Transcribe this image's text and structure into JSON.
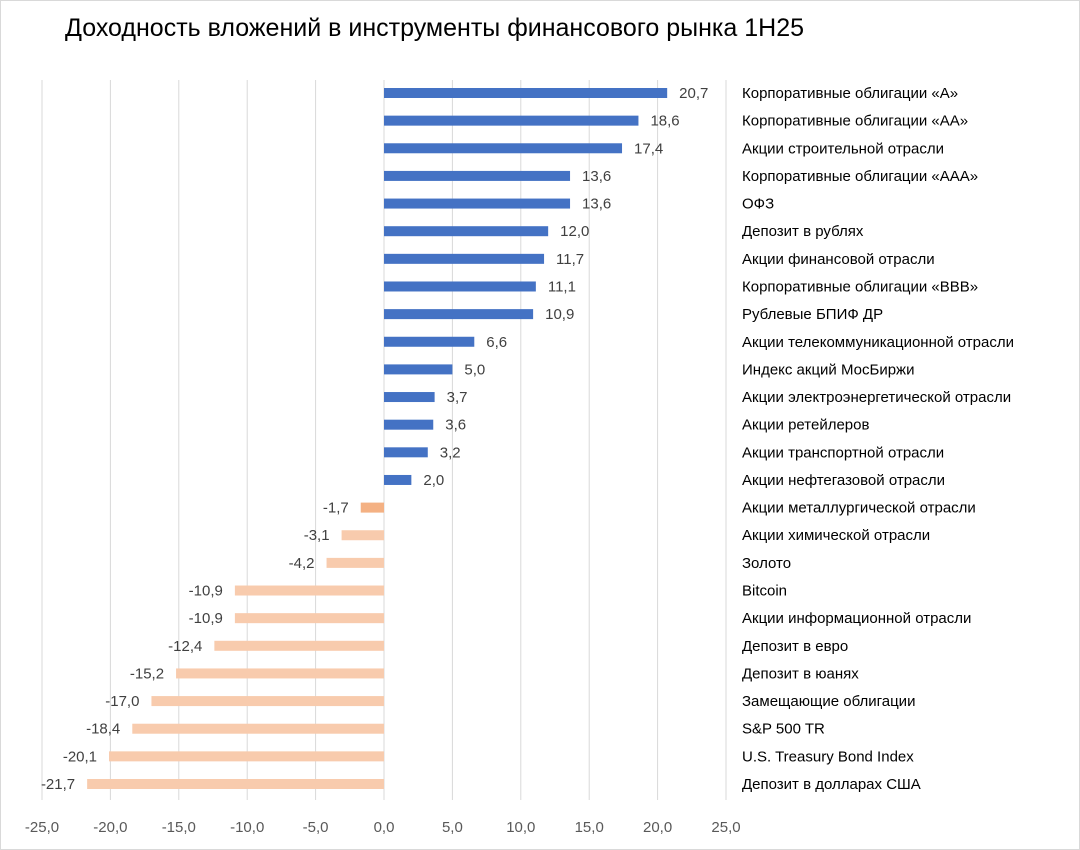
{
  "chart_data": {
    "type": "bar",
    "orientation": "horizontal",
    "title": "Доходность вложений в инструменты финансового рынка 1H25",
    "xlabel": "",
    "ylabel": "",
    "xlim": [
      -25,
      25
    ],
    "xticks": [
      -25,
      -20,
      -15,
      -10,
      -5,
      0,
      5,
      10,
      15,
      20,
      25
    ],
    "grid": true,
    "legend": "none",
    "categories": [
      "Корпоративные облигации «А»",
      "Корпоративные облигации «АА»",
      "Акции строительной отрасли",
      "Корпоративные облигации «ААА»",
      "ОФЗ",
      "Депозит в рублях",
      "Акции финансовой отрасли",
      "Корпоративные облигации «BBB»",
      "Рублевые БПИФ ДР",
      "Акции телекоммуникационной отрасли",
      "Индекс акций МосБиржи",
      "Акции электроэнергетической отрасли",
      "Акции ретейлеров",
      "Акции транспортной отрасли",
      "Акции нефтегазовой отрасли",
      "Акции металлургической отрасли",
      "Акции химической отрасли",
      "Золото",
      "Bitcoin",
      "Акции информационной отрасли",
      "Депозит в евро",
      "Депозит в юанях",
      "Замещающие облигации",
      "S&P 500 TR",
      "U.S. Treasury Bond Index",
      "Депозит в долларах США"
    ],
    "values": [
      20.7,
      18.6,
      17.4,
      13.6,
      13.6,
      12.0,
      11.7,
      11.1,
      10.9,
      6.6,
      5.0,
      3.7,
      3.6,
      3.2,
      2.0,
      -1.7,
      -3.1,
      -4.2,
      -10.9,
      -10.9,
      -12.4,
      -15.2,
      -17.0,
      -18.4,
      -20.1,
      -21.7
    ],
    "value_labels": [
      "20,7",
      "18,6",
      "17,4",
      "13,6",
      "13,6",
      "12,0",
      "11,7",
      "11,1",
      "10,9",
      "6,6",
      "5,0",
      "3,7",
      "3,6",
      "3,2",
      "2,0",
      "-1,7",
      "-3,1",
      "-4,2",
      "-10,9",
      "-10,9",
      "-12,4",
      "-15,2",
      "-17,0",
      "-18,4",
      "-20,1",
      "-21,7"
    ],
    "tick_labels": [
      "-25,0",
      "-20,0",
      "-15,0",
      "-10,0",
      "-5,0",
      "0,0",
      "5,0",
      "10,0",
      "15,0",
      "20,0",
      "25,0"
    ],
    "colors": {
      "positive": "#4472c4",
      "negative": "#f8cbad",
      "highlight": "#f4b183",
      "grid": "#d9d9d9",
      "tick_text": "#595959",
      "label_text": "#404040"
    },
    "highlight_index": 15
  }
}
